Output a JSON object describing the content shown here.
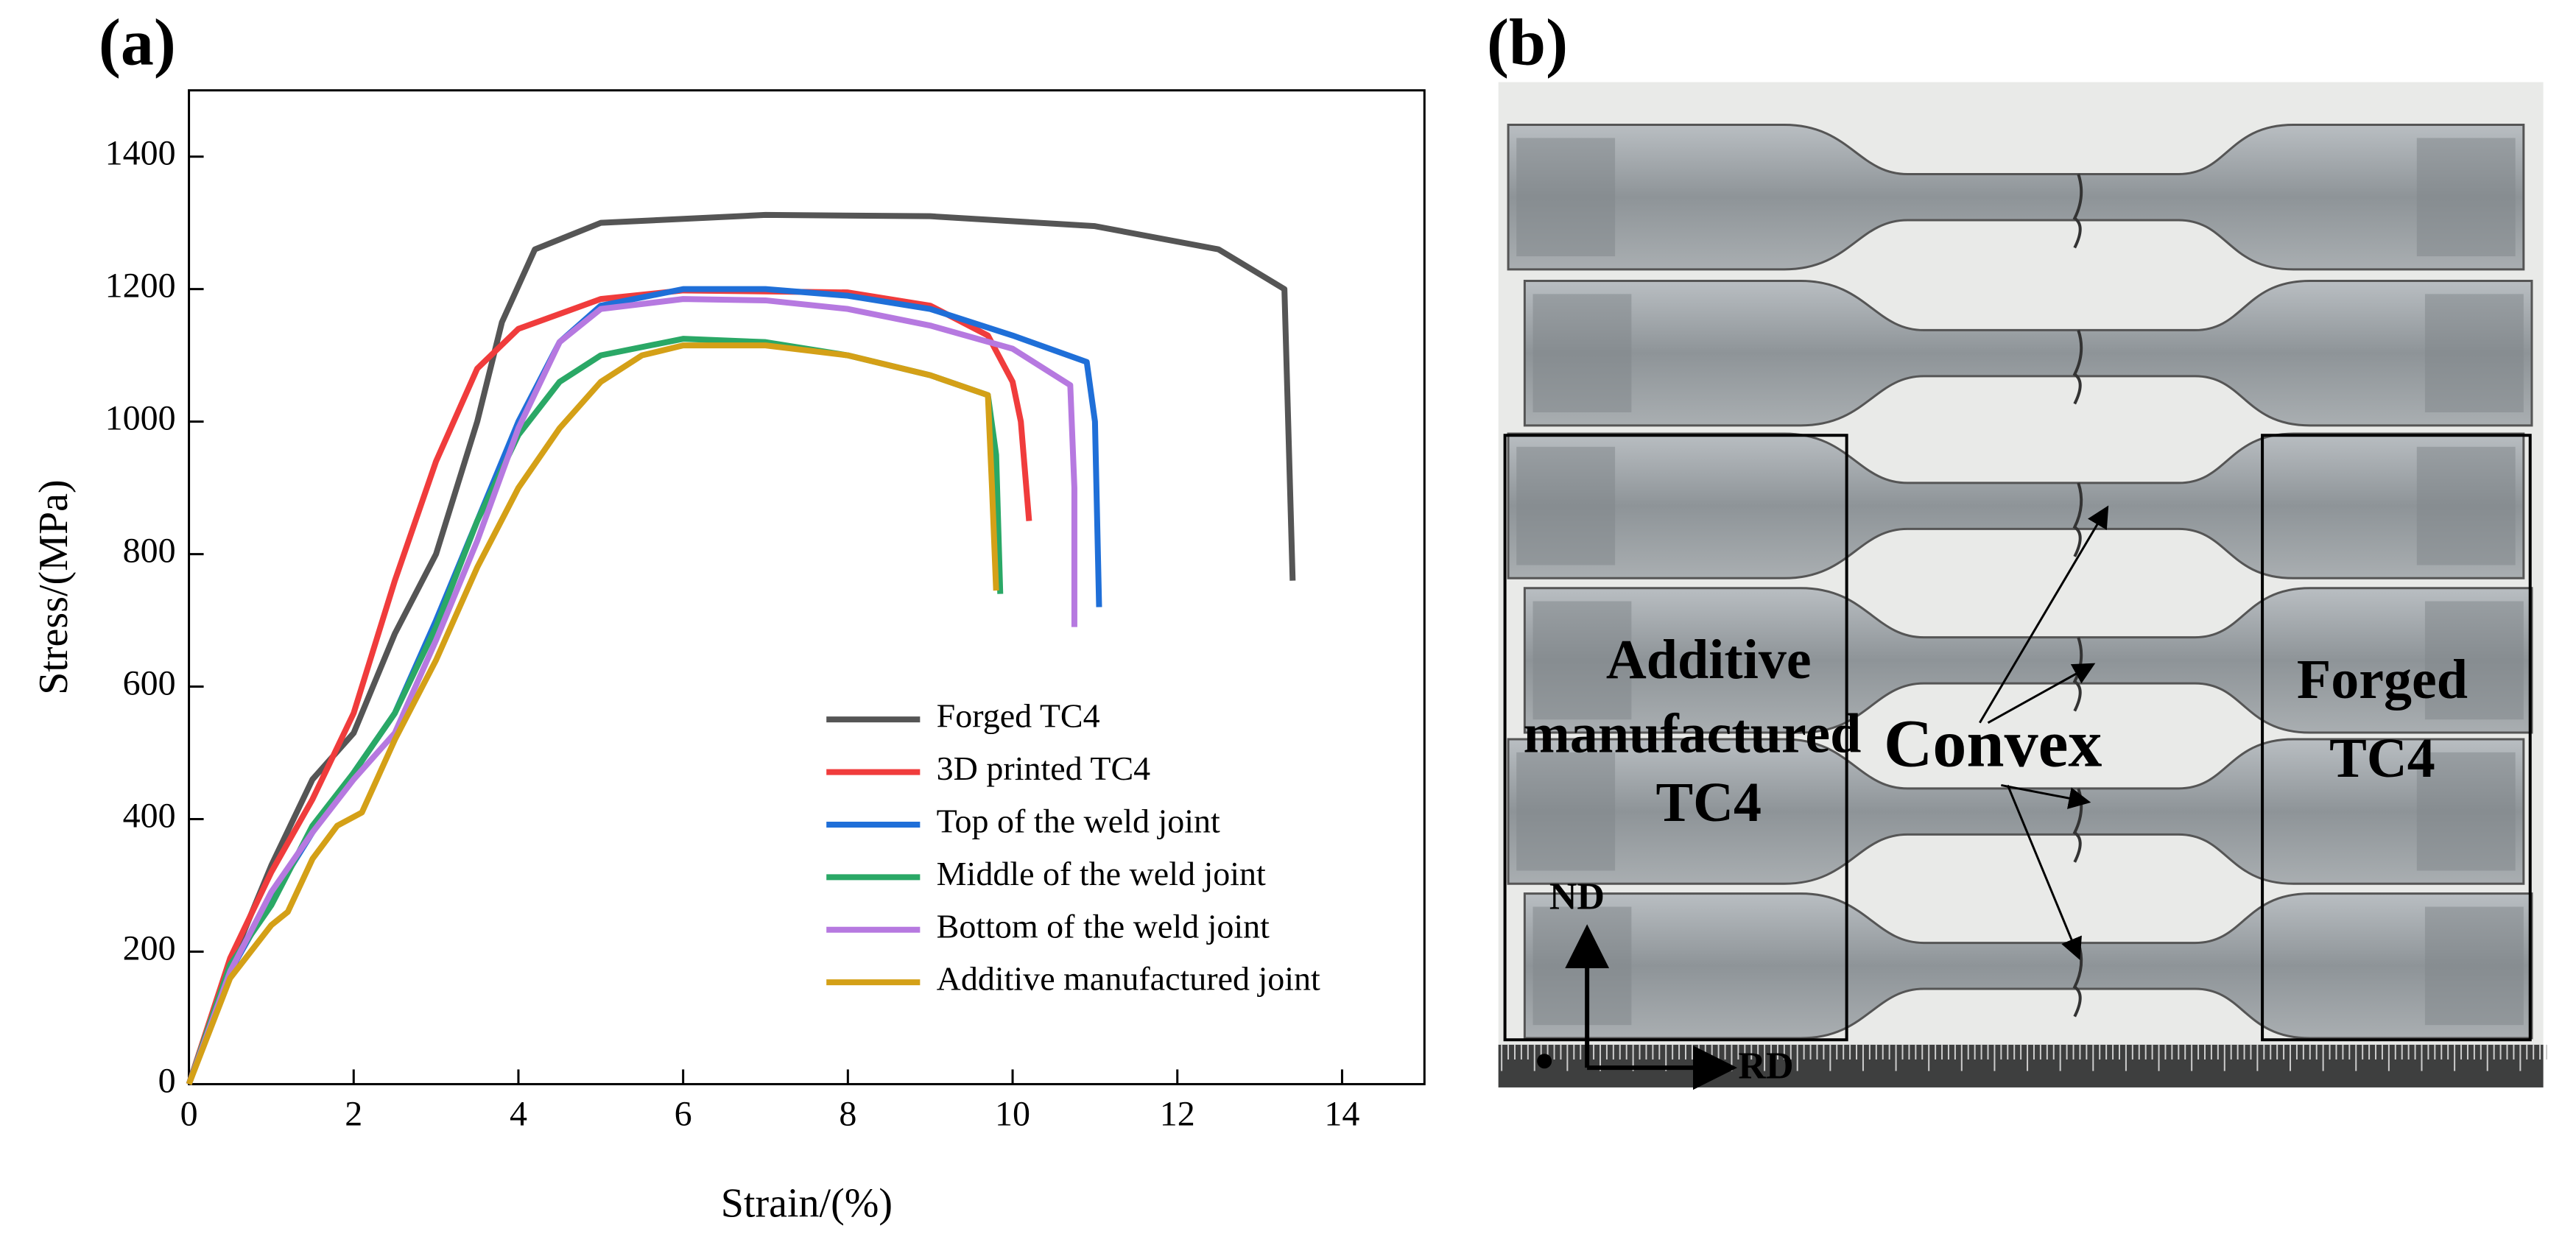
{
  "chart_data": {
    "type": "line",
    "panel_label": "(a)",
    "xlabel": "Strain/(%)",
    "ylabel": "Stress/(MPa)",
    "xlim": [
      0,
      15
    ],
    "ylim": [
      0,
      1500
    ],
    "xticks": [
      0,
      2,
      4,
      6,
      8,
      10,
      12,
      14
    ],
    "yticks": [
      0,
      200,
      400,
      600,
      800,
      1000,
      1200,
      1400
    ],
    "series": [
      {
        "name": "Forged TC4",
        "color": "#555555",
        "x": [
          0,
          0.5,
          1,
          1.5,
          2,
          2.5,
          3,
          3.5,
          3.8,
          4.2,
          5,
          7,
          9,
          11,
          12.5,
          13.3,
          13.4
        ],
        "values": [
          0,
          180,
          330,
          460,
          530,
          680,
          800,
          1000,
          1150,
          1260,
          1300,
          1312,
          1310,
          1295,
          1260,
          1200,
          760
        ]
      },
      {
        "name": "3D printed TC4",
        "color": "#f03c3c",
        "x": [
          0,
          0.5,
          1,
          1.5,
          2,
          2.5,
          3,
          3.5,
          4,
          5,
          6,
          8,
          9,
          9.7,
          10,
          10.1,
          10.2
        ],
        "values": [
          0,
          190,
          320,
          430,
          560,
          760,
          940,
          1080,
          1140,
          1185,
          1198,
          1195,
          1175,
          1130,
          1060,
          1000,
          850
        ]
      },
      {
        "name": "Top of the weld joint",
        "color": "#1f6fd8",
        "x": [
          0,
          0.5,
          1,
          1.5,
          2,
          2.5,
          3,
          3.5,
          4,
          4.5,
          5,
          6,
          7,
          8,
          9,
          10,
          10.9,
          11,
          11.05
        ],
        "values": [
          0,
          170,
          280,
          380,
          470,
          560,
          700,
          850,
          1000,
          1120,
          1175,
          1200,
          1200,
          1190,
          1170,
          1130,
          1090,
          1000,
          720
        ]
      },
      {
        "name": "Middle of the weld joint",
        "color": "#2aa866",
        "x": [
          0,
          0.5,
          1,
          1.5,
          2,
          2.5,
          3,
          3.5,
          4,
          4.5,
          5,
          6,
          7,
          8,
          9,
          9.7,
          9.8,
          9.85
        ],
        "values": [
          0,
          180,
          270,
          390,
          470,
          560,
          690,
          850,
          980,
          1060,
          1100,
          1125,
          1120,
          1100,
          1070,
          1040,
          950,
          740
        ]
      },
      {
        "name": "Bottom of the weld joint",
        "color": "#b679e0",
        "x": [
          0,
          0.5,
          1,
          1.5,
          2,
          2.5,
          3,
          3.5,
          4,
          4.5,
          5,
          6,
          7,
          8,
          9,
          10,
          10.7,
          10.75,
          10.75
        ],
        "values": [
          0,
          170,
          290,
          380,
          460,
          530,
          670,
          820,
          990,
          1120,
          1170,
          1185,
          1183,
          1170,
          1145,
          1110,
          1055,
          900,
          690
        ]
      },
      {
        "name": "Additive manufactured joint",
        "color": "#d4a017",
        "x": [
          0,
          0.5,
          1,
          1.2,
          1.5,
          1.8,
          2.1,
          2.5,
          3,
          3.5,
          4,
          4.5,
          5,
          5.5,
          6,
          7,
          8,
          9,
          9.7,
          9.75,
          9.8
        ],
        "values": [
          0,
          160,
          240,
          260,
          340,
          390,
          410,
          520,
          640,
          780,
          900,
          990,
          1060,
          1100,
          1115,
          1115,
          1100,
          1070,
          1040,
          900,
          745
        ]
      }
    ]
  },
  "photo": {
    "panel_label": "(b)",
    "left_label": [
      "Additive",
      "manufactured",
      "TC4"
    ],
    "center_label": "Convex",
    "right_label": [
      "Forged",
      "TC4"
    ],
    "nd": "ND",
    "rd": "RD"
  }
}
